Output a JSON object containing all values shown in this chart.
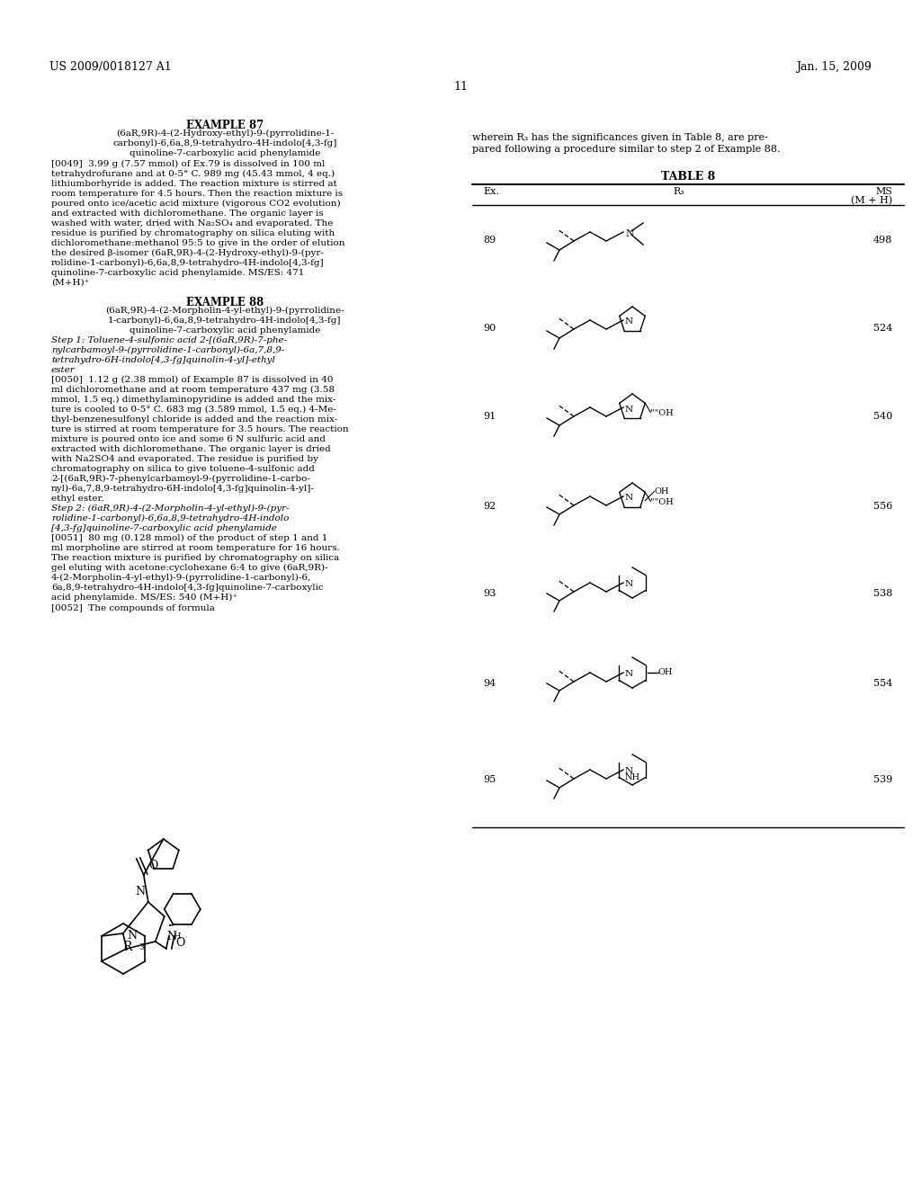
{
  "background_color": "#ffffff",
  "page_number": "11",
  "header_left": "US 2009/0018127 A1",
  "header_right": "Jan. 15, 2009",
  "table_title": "TABLE 8",
  "table_rows": [
    {
      "ex": "89",
      "ms": "498"
    },
    {
      "ex": "90",
      "ms": "524"
    },
    {
      "ex": "91",
      "ms": "540"
    },
    {
      "ex": "92",
      "ms": "556"
    },
    {
      "ex": "93",
      "ms": "538"
    },
    {
      "ex": "94",
      "ms": "554"
    },
    {
      "ex": "95",
      "ms": "539"
    }
  ]
}
